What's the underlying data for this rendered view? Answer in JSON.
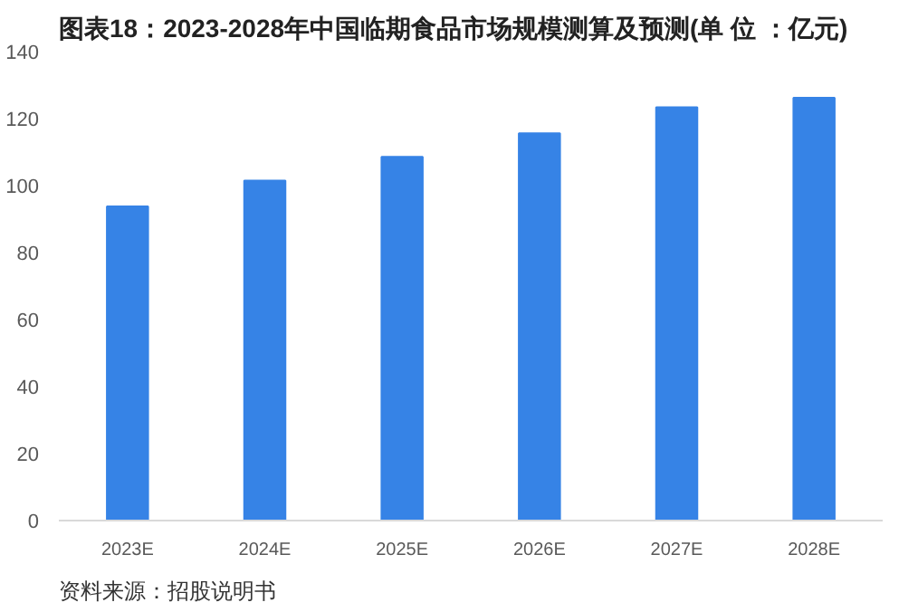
{
  "chart_data": {
    "type": "bar",
    "title": "图表18：2023-2028年中国临期食品市场规模测算及预测(单 位 ：亿元)",
    "categories": [
      "2023E",
      "2024E",
      "2025E",
      "2026E",
      "2027E",
      "2028E"
    ],
    "values": [
      93.8,
      101.5,
      108.6,
      115.6,
      123.4,
      126.2
    ],
    "color": "#3683e6",
    "ylim": [
      0,
      140
    ],
    "yticks": [
      0,
      20,
      40,
      60,
      80,
      100,
      120,
      140
    ],
    "grid": false,
    "annotations": [
      "资料来源：招股说明书"
    ]
  }
}
